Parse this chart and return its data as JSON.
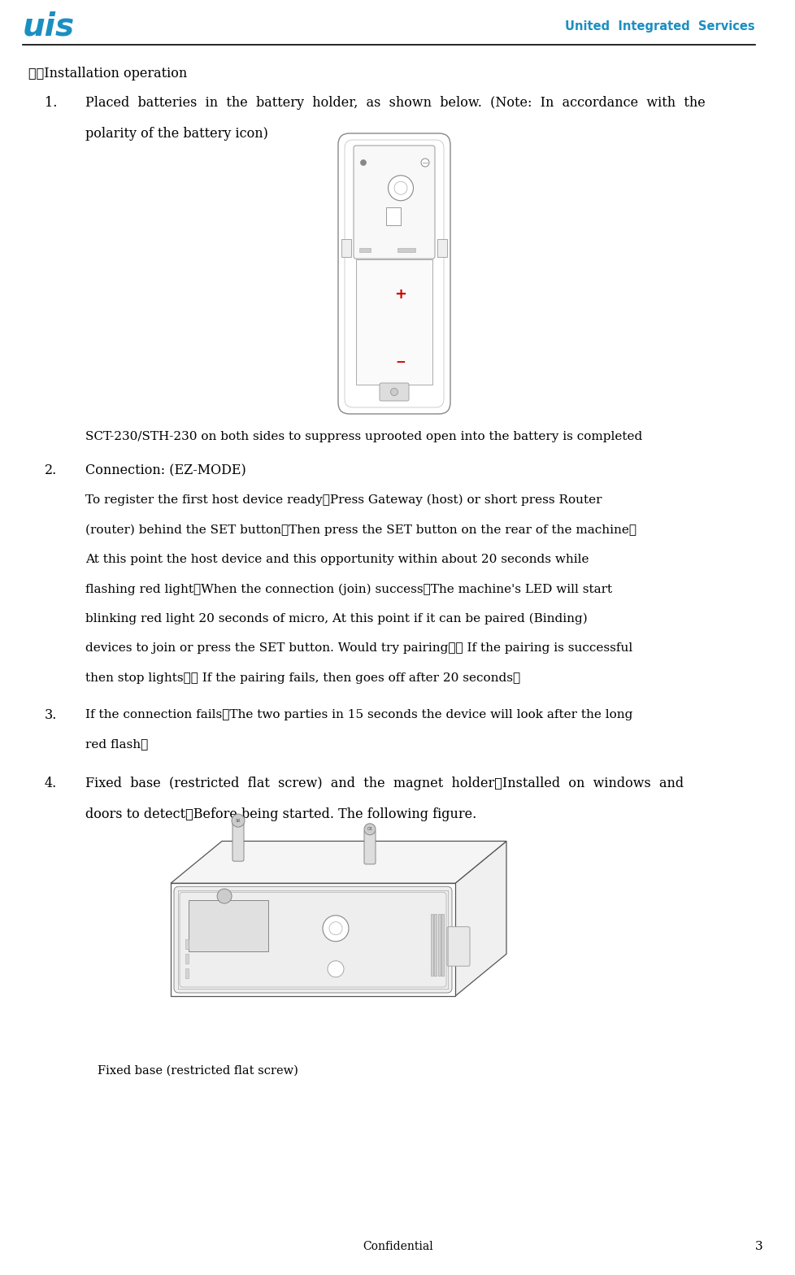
{
  "page_width": 9.79,
  "page_height": 15.68,
  "bg_color": "#ffffff",
  "logo_text": "uis",
  "logo_color": "#1b8fc1",
  "company_text": "United  Integrated  Services",
  "company_color": "#1b8fc1",
  "section_title": "三、Installation operation",
  "item1_line1": "Placed  batteries  in  the  battery  holder,  as  shown  below.  (Note:  In  accordance  with  the",
  "item1_line2": "polarity of the battery icon)",
  "item2_title": "Connection: (EZ-MODE)",
  "item2_lines": [
    "To register the first host device ready－Press Gateway (host) or short press Router",
    "(router) behind the SET button，Then press the SET button on the rear of the machine。",
    "At this point the host device and this opportunity within about 20 seconds while",
    "flashing red light；When the connection (join) success，The machine's LED will start",
    "blinking red light 20 seconds of micro, At this point if it can be paired (Binding)",
    "devices to join or press the SET button. Would try pairing，　 If the pairing is successful",
    "then stop lights，　 If the pairing fails, then goes off after 20 seconds。"
  ],
  "item3_lines": [
    "If the connection fails，The two parties in 15 seconds the device will look after the long",
    "red flash。"
  ],
  "item4_line1": "Fixed  base  (restricted  flat  screw)  and  the  magnet  holder，Installed  on  windows  and",
  "item4_line2": "doors to detect，Before being started. The following figure.",
  "sct_text": "SCT-230/STH-230 on both sides to suppress uprooted open into the battery is completed",
  "fixed_base_label": "Fixed base (restricted flat screw)",
  "confidential_text": "Confidential",
  "page_number": "3",
  "black": "#000000",
  "teal": "#1b8fc1",
  "red": "#cc0000",
  "gray1": "#888888",
  "gray2": "#aaaaaa",
  "gray3": "#cccccc",
  "gray4": "#e8e8e8",
  "white": "#ffffff"
}
